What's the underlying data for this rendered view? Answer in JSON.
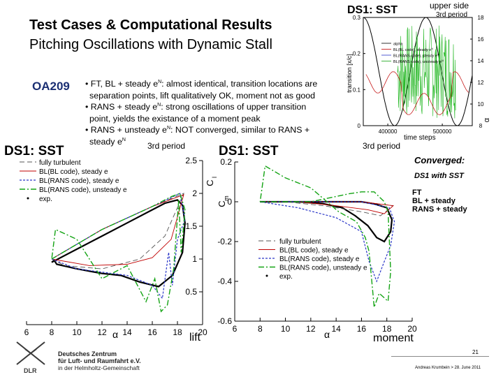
{
  "slide": {
    "title": "Test Cases & Computational Results",
    "subtitle": "Pitching Oscillations with Dynamic Stall",
    "case_label": "OA209",
    "bullets": [
      {
        "pre": "• FT, BL + steady e",
        "sup": "N",
        "post": ": almost identical, transition locations are"
      },
      {
        "pre": "separation points, lift qualitatively OK, moment not as good",
        "sup": "",
        "post": ""
      },
      {
        "pre": "• RANS + steady e",
        "sup": "N",
        "post": ": strong oscillations of upper transition"
      },
      {
        "pre": "point, yields the existance of a moment peak",
        "sup": "",
        "post": ""
      },
      {
        "pre": "• RANS + unsteady e",
        "sup": "N",
        "post": ": NOT converged, similar to RANS +"
      },
      {
        "pre": "steady e",
        "sup": "N",
        "post": ""
      }
    ],
    "converged": "Converged:",
    "converged_case": "DS1 with SST",
    "converged_list": [
      "FT",
      "BL + steady",
      "RANS + steady"
    ],
    "lift_caption": "lift",
    "moment_caption": "moment",
    "page_number": "21",
    "author": "Andreas Krumbein > 28. June 2011",
    "institution": [
      "Deutsches Zentrum",
      "für Luft- und Raumfahrt e.V.",
      "in der Helmholtz-Gemeinschaft"
    ],
    "logo_text": "DLR"
  },
  "colors": {
    "accent_blue": "#1b2f73",
    "ft": "#555555",
    "bl": "#c00000",
    "rans_steady": "#2a36c8",
    "rans_unsteady": "#13a313",
    "exp": "#000000",
    "transition": "#16b316"
  },
  "legend": [
    "fully turbulent",
    "BL(BL code), steady e",
    "BL(RANS code), steady e",
    "BL(RANS code), unsteady e",
    "exp."
  ],
  "chart_data": [
    {
      "type": "line",
      "title": "DS1: SST",
      "period": "3rd period",
      "xlabel": "α",
      "ylabel": "C_l",
      "xlim": [
        6,
        20
      ],
      "ylim": [
        0,
        2.5
      ],
      "xticks": [
        6,
        8,
        10,
        12,
        14,
        16,
        18,
        20
      ],
      "yticks": [
        0.5,
        1,
        1.5,
        2,
        2.5
      ],
      "series": [
        {
          "name": "exp.",
          "x": [
            8,
            10,
            12,
            14,
            16,
            17,
            18,
            18.4,
            18.6,
            18.4,
            17.6,
            16.5,
            15,
            13.5,
            12,
            10,
            8.4,
            8.2,
            8
          ],
          "y": [
            0.95,
            1.15,
            1.35,
            1.55,
            1.75,
            1.85,
            1.9,
            1.82,
            1.55,
            1.1,
            0.75,
            0.58,
            0.65,
            0.75,
            0.78,
            0.85,
            0.92,
            0.98,
            0.95
          ]
        },
        {
          "name": "fully turbulent",
          "x": [
            8,
            12,
            16,
            18.5,
            17,
            15,
            12,
            9,
            8
          ],
          "y": [
            1.0,
            1.45,
            1.8,
            2.0,
            1.35,
            1.0,
            0.85,
            0.9,
            1.0
          ]
        },
        {
          "name": "BL(BL code), steady e",
          "x": [
            8,
            12,
            16,
            18.5,
            17.5,
            16,
            14,
            11,
            8
          ],
          "y": [
            1.0,
            1.45,
            1.8,
            1.98,
            1.3,
            1.02,
            0.92,
            0.9,
            1.0
          ]
        },
        {
          "name": "BL(RANS code), steady e",
          "x": [
            8,
            12,
            16,
            18.2,
            18.6,
            18,
            17.6,
            17.3,
            16.8,
            16,
            14,
            12,
            10,
            8
          ],
          "y": [
            1.0,
            1.45,
            1.8,
            2.0,
            1.6,
            1.3,
            0.6,
            1.1,
            0.4,
            0.6,
            0.75,
            0.8,
            0.85,
            1.0
          ]
        },
        {
          "name": "BL(RANS code), unsteady e",
          "x": [
            8,
            12,
            16,
            17.5,
            18.2,
            18.6,
            18.3,
            18.1,
            17.7,
            17.2,
            16.7,
            16.2,
            15.5,
            14,
            12,
            10,
            8.3,
            8
          ],
          "y": [
            1.0,
            1.45,
            1.8,
            1.95,
            2.0,
            1.75,
            1.1,
            1.9,
            0.85,
            0.3,
            0.2,
            0.7,
            0.35,
            0.9,
            0.7,
            1.3,
            1.45,
            1.0
          ]
        }
      ]
    },
    {
      "type": "line",
      "title": "DS1: SST",
      "period": "3rd period",
      "xlabel": "α",
      "ylabel": "C_m",
      "xlim": [
        6,
        20
      ],
      "ylim": [
        -0.6,
        0.2
      ],
      "xticks": [
        6,
        8,
        10,
        12,
        14,
        16,
        18,
        20
      ],
      "yticks": [
        -0.6,
        -0.4,
        -0.2,
        0,
        0.2
      ],
      "series": [
        {
          "name": "exp.",
          "x": [
            8,
            10,
            12,
            14,
            16,
            17,
            18,
            18.4,
            18.3,
            17.8,
            17.2,
            16.5,
            15.5,
            14.5,
            13,
            11,
            9,
            8
          ],
          "y": [
            0.0,
            0.0,
            0.0,
            0.0,
            0.0,
            -0.01,
            -0.03,
            -0.09,
            -0.15,
            -0.2,
            -0.18,
            -0.12,
            -0.07,
            -0.03,
            -0.01,
            0.0,
            0.0,
            0.0
          ]
        },
        {
          "name": "fully turbulent",
          "x": [
            8,
            12,
            16,
            18.5,
            17.5,
            16,
            13,
            10,
            8
          ],
          "y": [
            0.0,
            0.0,
            0.0,
            -0.02,
            -0.07,
            -0.05,
            -0.02,
            0.0,
            0.0
          ]
        },
        {
          "name": "BL(BL code), steady e",
          "x": [
            8,
            12,
            16,
            18.5,
            17.8,
            16.5,
            14,
            11,
            8
          ],
          "y": [
            0.0,
            0.0,
            0.0,
            -0.02,
            -0.06,
            -0.04,
            -0.02,
            0.0,
            0.0
          ]
        },
        {
          "name": "BL(RANS code), steady e",
          "x": [
            8,
            12,
            16,
            18.2,
            18.6,
            18.3,
            17.8,
            17.2,
            16.6,
            16,
            14,
            11,
            8
          ],
          "y": [
            0.0,
            0.0,
            0.0,
            -0.03,
            -0.1,
            -0.22,
            -0.3,
            -0.4,
            -0.3,
            -0.15,
            -0.08,
            -0.03,
            0.0
          ]
        },
        {
          "name": "BL(RANS code), unsteady e",
          "x": [
            8,
            12,
            15,
            16,
            17,
            17.8,
            18.1,
            18.3,
            18.1,
            17.4,
            17,
            16.6,
            16.3,
            15.6,
            14.2,
            12,
            10,
            8.4,
            8
          ],
          "y": [
            0.0,
            0.0,
            0.04,
            0.05,
            0.05,
            0.0,
            -0.05,
            -0.35,
            -0.5,
            -0.46,
            -0.53,
            -0.25,
            -0.18,
            -0.1,
            -0.05,
            0.07,
            0.12,
            0.18,
            0.0
          ]
        }
      ]
    },
    {
      "type": "line",
      "title": "DS1: SST",
      "annotations": [
        "upper side",
        "3rd period"
      ],
      "xlabel": "time steps",
      "ylabel": "transition [x/c]",
      "y2label": "α",
      "xlim": [
        355000,
        555000
      ],
      "ylim": [
        0,
        0.3
      ],
      "y2lim": [
        8,
        18
      ],
      "xticks": [
        400000,
        500000
      ],
      "yticks": [
        0,
        0.1,
        0.2,
        0.3
      ],
      "y2ticks": [
        8,
        10,
        12,
        14,
        16,
        18
      ],
      "legend": [
        "alpha",
        "BL(BL code), steady e",
        "BL(RANS code), steady e",
        "BL(RANS code), unsteady e"
      ]
    }
  ]
}
